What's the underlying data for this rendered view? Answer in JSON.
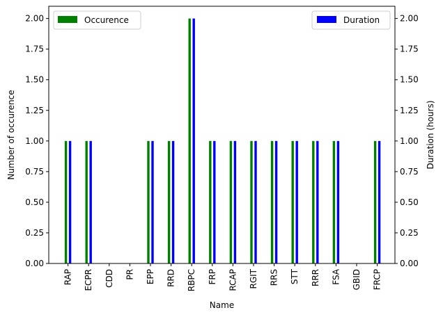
{
  "chart_data": {
    "type": "bar",
    "categories": [
      "RAP",
      "ECPR",
      "CDD",
      "PR",
      "EPP",
      "RRD",
      "RBPC",
      "FRP",
      "RCAP",
      "RGIT",
      "RRS",
      "STT",
      "RRR",
      "FSA",
      "GBID",
      "FRCP"
    ],
    "series": [
      {
        "name": "Occurence",
        "axis": "left",
        "color": "#008000",
        "values": [
          1,
          1,
          0,
          0,
          1,
          1,
          2,
          1,
          1,
          1,
          1,
          1,
          1,
          1,
          0,
          1
        ]
      },
      {
        "name": "Duration",
        "axis": "right",
        "color": "#0000ff",
        "values": [
          1,
          1,
          0,
          0,
          1,
          1,
          2,
          1,
          1,
          1,
          1,
          1,
          1,
          1,
          0,
          1
        ]
      }
    ],
    "xlabel": "Name",
    "ylabel": "Number of occurence",
    "y2label": "Duration (hours)",
    "ylim": [
      0,
      2.1
    ],
    "y2lim": [
      0,
      2.1
    ],
    "yticks": [
      "0.00",
      "0.25",
      "0.50",
      "0.75",
      "1.00",
      "1.25",
      "1.50",
      "1.75",
      "2.00"
    ],
    "legend": [
      {
        "label": "Occurence",
        "placement": "top-left",
        "color": "#008000"
      },
      {
        "label": "Duration",
        "placement": "top-right",
        "color": "#0000ff"
      }
    ],
    "grid": false
  }
}
